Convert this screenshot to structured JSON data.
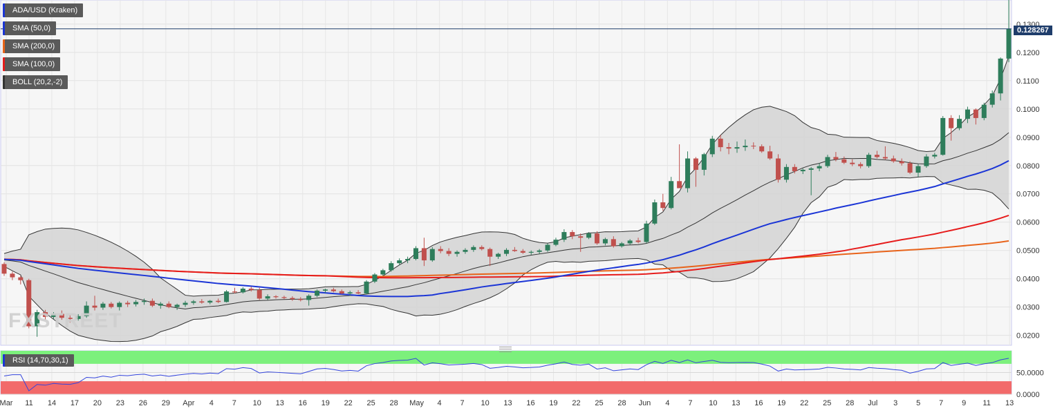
{
  "instrument": "ADA/USD (Kraken)",
  "indicators": [
    {
      "label": "SMA (50,0)",
      "color": "#1b35d6"
    },
    {
      "label": "SMA (200,0)",
      "color": "#e8631a"
    },
    {
      "label": "SMA (100,0)",
      "color": "#e61c1c"
    },
    {
      "label": "BOLL (20,2,-2)",
      "color": "#333333"
    }
  ],
  "rsi_label": "RSI (14,70,30,1)",
  "last_price": "0.128267",
  "watermark": "FXSTREET",
  "chart_data": [
    {
      "type": "candlestick",
      "title": "ADA/USD (Kraken)",
      "x_axis": {
        "tick_labels": [
          "Mar",
          "11",
          "14",
          "17",
          "20",
          "23",
          "26",
          "29",
          "Apr",
          "4",
          "7",
          "10",
          "13",
          "16",
          "19",
          "22",
          "25",
          "28",
          "May",
          "4",
          "7",
          "10",
          "13",
          "16",
          "19",
          "22",
          "25",
          "28",
          "Jun",
          "4",
          "7",
          "10",
          "13",
          "16",
          "19",
          "22",
          "25",
          "28",
          "Jul",
          "3",
          "5",
          "7",
          "9",
          "11",
          "13"
        ]
      },
      "y_axis": {
        "tick_labels": [
          "0.1300",
          "0.1200",
          "0.1100",
          "0.1000",
          "0.0900",
          "0.0800",
          "0.0700",
          "0.0600",
          "0.0500",
          "0.0400",
          "0.0300",
          "0.0200"
        ],
        "ylim": [
          0.0165,
          0.1385
        ],
        "position": "right"
      },
      "grid": true,
      "candles": [
        [
          0.0452,
          0.0458,
          0.041,
          0.0418
        ],
        [
          0.0418,
          0.0425,
          0.0395,
          0.0405
        ],
        [
          0.0405,
          0.041,
          0.038,
          0.0395
        ],
        [
          0.0395,
          0.04,
          0.0225,
          0.0232
        ],
        [
          0.0232,
          0.029,
          0.0195,
          0.0282
        ],
        [
          0.0282,
          0.029,
          0.0255,
          0.0265
        ],
        [
          0.0265,
          0.0282,
          0.0258,
          0.0276
        ],
        [
          0.0276,
          0.0288,
          0.0255,
          0.0262
        ],
        [
          0.0262,
          0.0272,
          0.0245,
          0.0258
        ],
        [
          0.0258,
          0.0275,
          0.0252,
          0.0268
        ],
        [
          0.0268,
          0.032,
          0.0262,
          0.0305
        ],
        [
          0.0305,
          0.034,
          0.0288,
          0.0298
        ],
        [
          0.0298,
          0.0318,
          0.029,
          0.0312
        ],
        [
          0.0312,
          0.0318,
          0.0295,
          0.03
        ],
        [
          0.03,
          0.032,
          0.0288,
          0.0315
        ],
        [
          0.0315,
          0.0322,
          0.03,
          0.031
        ],
        [
          0.031,
          0.0325,
          0.0302,
          0.0318
        ],
        [
          0.0318,
          0.033,
          0.0308,
          0.0322
        ],
        [
          0.0322,
          0.033,
          0.03,
          0.0305
        ],
        [
          0.0305,
          0.0318,
          0.0294,
          0.0312
        ],
        [
          0.0312,
          0.032,
          0.0296,
          0.03
        ],
        [
          0.03,
          0.0312,
          0.029,
          0.0308
        ],
        [
          0.0308,
          0.0322,
          0.03,
          0.0315
        ],
        [
          0.0315,
          0.0325,
          0.0308,
          0.032
        ],
        [
          0.032,
          0.0328,
          0.0312,
          0.0316
        ],
        [
          0.0316,
          0.0325,
          0.031,
          0.0322
        ],
        [
          0.0322,
          0.033,
          0.0314,
          0.0318
        ],
        [
          0.0318,
          0.036,
          0.0316,
          0.0355
        ],
        [
          0.0355,
          0.0368,
          0.0348,
          0.0352
        ],
        [
          0.0352,
          0.037,
          0.0348,
          0.0365
        ],
        [
          0.0365,
          0.0372,
          0.0355,
          0.036
        ],
        [
          0.036,
          0.0368,
          0.0325,
          0.033
        ],
        [
          0.033,
          0.0345,
          0.0325,
          0.0338
        ],
        [
          0.0338,
          0.0342,
          0.033,
          0.0335
        ],
        [
          0.0335,
          0.034,
          0.0328,
          0.0332
        ],
        [
          0.0332,
          0.0338,
          0.0322,
          0.0328
        ],
        [
          0.0328,
          0.0335,
          0.032,
          0.0325
        ],
        [
          0.0325,
          0.0345,
          0.0305,
          0.034
        ],
        [
          0.034,
          0.0362,
          0.0335,
          0.0358
        ],
        [
          0.0358,
          0.0365,
          0.035,
          0.0362
        ],
        [
          0.0362,
          0.0368,
          0.0352,
          0.0356
        ],
        [
          0.0356,
          0.0362,
          0.0345,
          0.0348
        ],
        [
          0.0348,
          0.0358,
          0.034,
          0.0352
        ],
        [
          0.0352,
          0.036,
          0.0345,
          0.0348
        ],
        [
          0.0348,
          0.0395,
          0.0345,
          0.039
        ],
        [
          0.039,
          0.042,
          0.0385,
          0.0415
        ],
        [
          0.0415,
          0.0435,
          0.041,
          0.043
        ],
        [
          0.043,
          0.0462,
          0.0425,
          0.0455
        ],
        [
          0.0455,
          0.0472,
          0.0448,
          0.0465
        ],
        [
          0.0465,
          0.0478,
          0.0455,
          0.047
        ],
        [
          0.047,
          0.0515,
          0.0465,
          0.0508
        ],
        [
          0.0508,
          0.0545,
          0.0445,
          0.0465
        ],
        [
          0.0465,
          0.0512,
          0.046,
          0.0505
        ],
        [
          0.0505,
          0.0515,
          0.049,
          0.0498
        ],
        [
          0.0498,
          0.0508,
          0.048,
          0.0488
        ],
        [
          0.0488,
          0.05,
          0.0478,
          0.0495
        ],
        [
          0.0495,
          0.0508,
          0.0488,
          0.0502
        ],
        [
          0.0502,
          0.0518,
          0.0495,
          0.0512
        ],
        [
          0.0512,
          0.0518,
          0.05,
          0.0505
        ],
        [
          0.0505,
          0.051,
          0.0445,
          0.0478
        ],
        [
          0.0478,
          0.0492,
          0.047,
          0.0488
        ],
        [
          0.0488,
          0.0508,
          0.048,
          0.0502
        ],
        [
          0.0502,
          0.0512,
          0.0495,
          0.0498
        ],
        [
          0.0498,
          0.0505,
          0.0488,
          0.0492
        ],
        [
          0.0492,
          0.05,
          0.0485,
          0.0495
        ],
        [
          0.0495,
          0.0505,
          0.0488,
          0.05
        ],
        [
          0.05,
          0.0525,
          0.0495,
          0.052
        ],
        [
          0.052,
          0.0545,
          0.0515,
          0.0538
        ],
        [
          0.0538,
          0.0575,
          0.053,
          0.0565
        ],
        [
          0.0565,
          0.0572,
          0.054,
          0.055
        ],
        [
          0.055,
          0.056,
          0.0495,
          0.0545
        ],
        [
          0.0545,
          0.0565,
          0.054,
          0.056
        ],
        [
          0.056,
          0.0568,
          0.052,
          0.0525
        ],
        [
          0.0525,
          0.0545,
          0.0518,
          0.054
        ],
        [
          0.054,
          0.055,
          0.051,
          0.0515
        ],
        [
          0.0515,
          0.053,
          0.051,
          0.0525
        ],
        [
          0.0525,
          0.054,
          0.052,
          0.0535
        ],
        [
          0.0535,
          0.0545,
          0.0525,
          0.053
        ],
        [
          0.053,
          0.0605,
          0.0525,
          0.0595
        ],
        [
          0.0595,
          0.068,
          0.059,
          0.067
        ],
        [
          0.067,
          0.07,
          0.064,
          0.065
        ],
        [
          0.065,
          0.076,
          0.0645,
          0.0745
        ],
        [
          0.0745,
          0.0875,
          0.0725,
          0.072
        ],
        [
          0.072,
          0.085,
          0.0705,
          0.0825
        ],
        [
          0.0825,
          0.083,
          0.0725,
          0.0785
        ],
        [
          0.0785,
          0.0845,
          0.0765,
          0.084
        ],
        [
          0.084,
          0.0905,
          0.083,
          0.0895
        ],
        [
          0.0895,
          0.0908,
          0.085,
          0.0865
        ],
        [
          0.0865,
          0.088,
          0.084,
          0.086
        ],
        [
          0.086,
          0.0885,
          0.0845,
          0.0865
        ],
        [
          0.0865,
          0.0892,
          0.0852,
          0.087
        ],
        [
          0.087,
          0.0882,
          0.0858,
          0.0868
        ],
        [
          0.0868,
          0.0875,
          0.0845,
          0.085
        ],
        [
          0.085,
          0.087,
          0.082,
          0.0825
        ],
        [
          0.0825,
          0.084,
          0.074,
          0.075
        ],
        [
          0.075,
          0.0805,
          0.074,
          0.0795
        ],
        [
          0.0795,
          0.0805,
          0.0772,
          0.078
        ],
        [
          0.078,
          0.079,
          0.077,
          0.0785
        ],
        [
          0.0785,
          0.0795,
          0.0695,
          0.079
        ],
        [
          0.079,
          0.0808,
          0.078,
          0.0798
        ],
        [
          0.0798,
          0.0838,
          0.0792,
          0.083
        ],
        [
          0.083,
          0.0848,
          0.0815,
          0.0822
        ],
        [
          0.0822,
          0.0832,
          0.0805,
          0.081
        ],
        [
          0.081,
          0.0822,
          0.0798,
          0.0805
        ],
        [
          0.0805,
          0.0812,
          0.079,
          0.0798
        ],
        [
          0.0798,
          0.0845,
          0.0792,
          0.0838
        ],
        [
          0.0838,
          0.0852,
          0.0825,
          0.083
        ],
        [
          0.083,
          0.0868,
          0.082,
          0.0825
        ],
        [
          0.0825,
          0.0835,
          0.081,
          0.0815
        ],
        [
          0.0815,
          0.0825,
          0.08,
          0.0808
        ],
        [
          0.0808,
          0.0815,
          0.077,
          0.0775
        ],
        [
          0.0775,
          0.0805,
          0.076,
          0.0798
        ],
        [
          0.0798,
          0.084,
          0.0792,
          0.0832
        ],
        [
          0.0832,
          0.0845,
          0.0825,
          0.0838
        ],
        [
          0.0838,
          0.0975,
          0.0835,
          0.0968
        ],
        [
          0.0968,
          0.0978,
          0.0888,
          0.0932
        ],
        [
          0.0932,
          0.0978,
          0.0925,
          0.0965
        ],
        [
          0.0965,
          0.1008,
          0.095,
          0.0998
        ],
        [
          0.0998,
          0.1002,
          0.0945,
          0.0968
        ],
        [
          0.0968,
          0.1022,
          0.096,
          0.1015
        ],
        [
          0.1015,
          0.1065,
          0.1005,
          0.1055
        ],
        [
          0.1055,
          0.1182,
          0.103,
          0.1178
        ],
        [
          0.1178,
          0.1385,
          0.1165,
          0.1283
        ]
      ]
    },
    {
      "type": "line",
      "title": "RSI (14,70,30,1)",
      "y_axis": {
        "tick_labels": [
          "50.0000",
          "0.0000"
        ],
        "ylim": [
          0,
          100
        ]
      },
      "overbought": 70,
      "oversold": 30,
      "grid": true
    }
  ]
}
